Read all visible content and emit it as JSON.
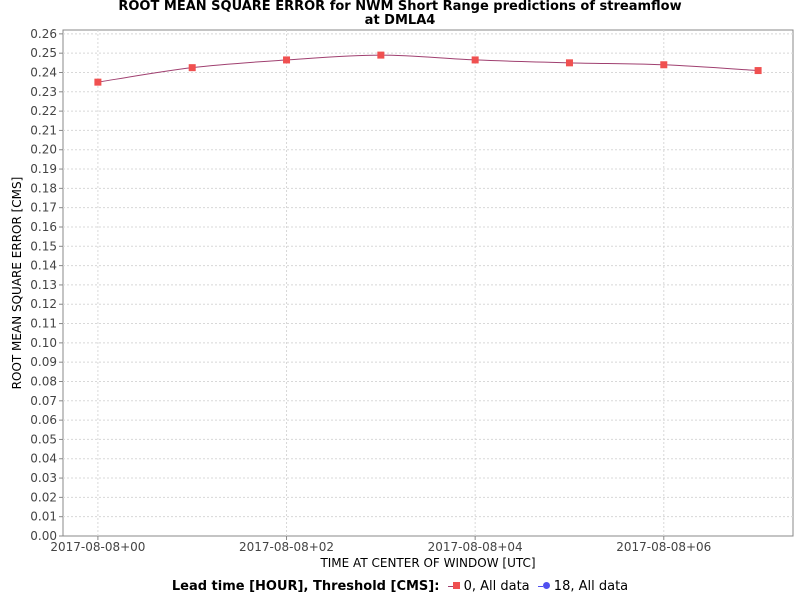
{
  "chart_data": {
    "type": "line",
    "title": "ROOT MEAN SQUARE ERROR for NWM Short Range predictions of streamflow",
    "subtitle": "at DMLA4",
    "xlabel": "TIME AT CENTER OF WINDOW [UTC]",
    "ylabel": "ROOT MEAN SQUARE ERROR [CMS]",
    "x_hours": [
      0,
      1,
      2,
      3,
      4,
      5,
      6,
      7
    ],
    "x_ticks": [
      {
        "hour": 0,
        "label": "2017-08-08+00"
      },
      {
        "hour": 2,
        "label": "2017-08-08+02"
      },
      {
        "hour": 4,
        "label": "2017-08-08+04"
      },
      {
        "hour": 6,
        "label": "2017-08-08+06"
      }
    ],
    "xlim": [
      -0.37,
      7.37
    ],
    "ylim": [
      0,
      0.262
    ],
    "y_ticks": [
      "0.00",
      "0.01",
      "0.02",
      "0.03",
      "0.04",
      "0.05",
      "0.06",
      "0.07",
      "0.08",
      "0.09",
      "0.10",
      "0.11",
      "0.12",
      "0.13",
      "0.14",
      "0.15",
      "0.16",
      "0.17",
      "0.18",
      "0.19",
      "0.20",
      "0.21",
      "0.22",
      "0.23",
      "0.24",
      "0.25",
      "0.26"
    ],
    "grid": true,
    "legend_position": "bottom",
    "series": [
      {
        "name": "0, All data",
        "marker": "square",
        "color": "#f05050",
        "line_color": "#a04070",
        "values": [
          0.235,
          0.2425,
          0.2465,
          0.249,
          0.2465,
          0.245,
          0.244,
          0.241
        ]
      },
      {
        "name": "18, All data",
        "marker": "circle",
        "color": "#5050f0",
        "line_color": "#5050f0",
        "values": []
      }
    ]
  },
  "legend": {
    "title": "Lead time [HOUR], Threshold [CMS]:",
    "items": [
      "0, All data",
      "18, All data"
    ]
  }
}
